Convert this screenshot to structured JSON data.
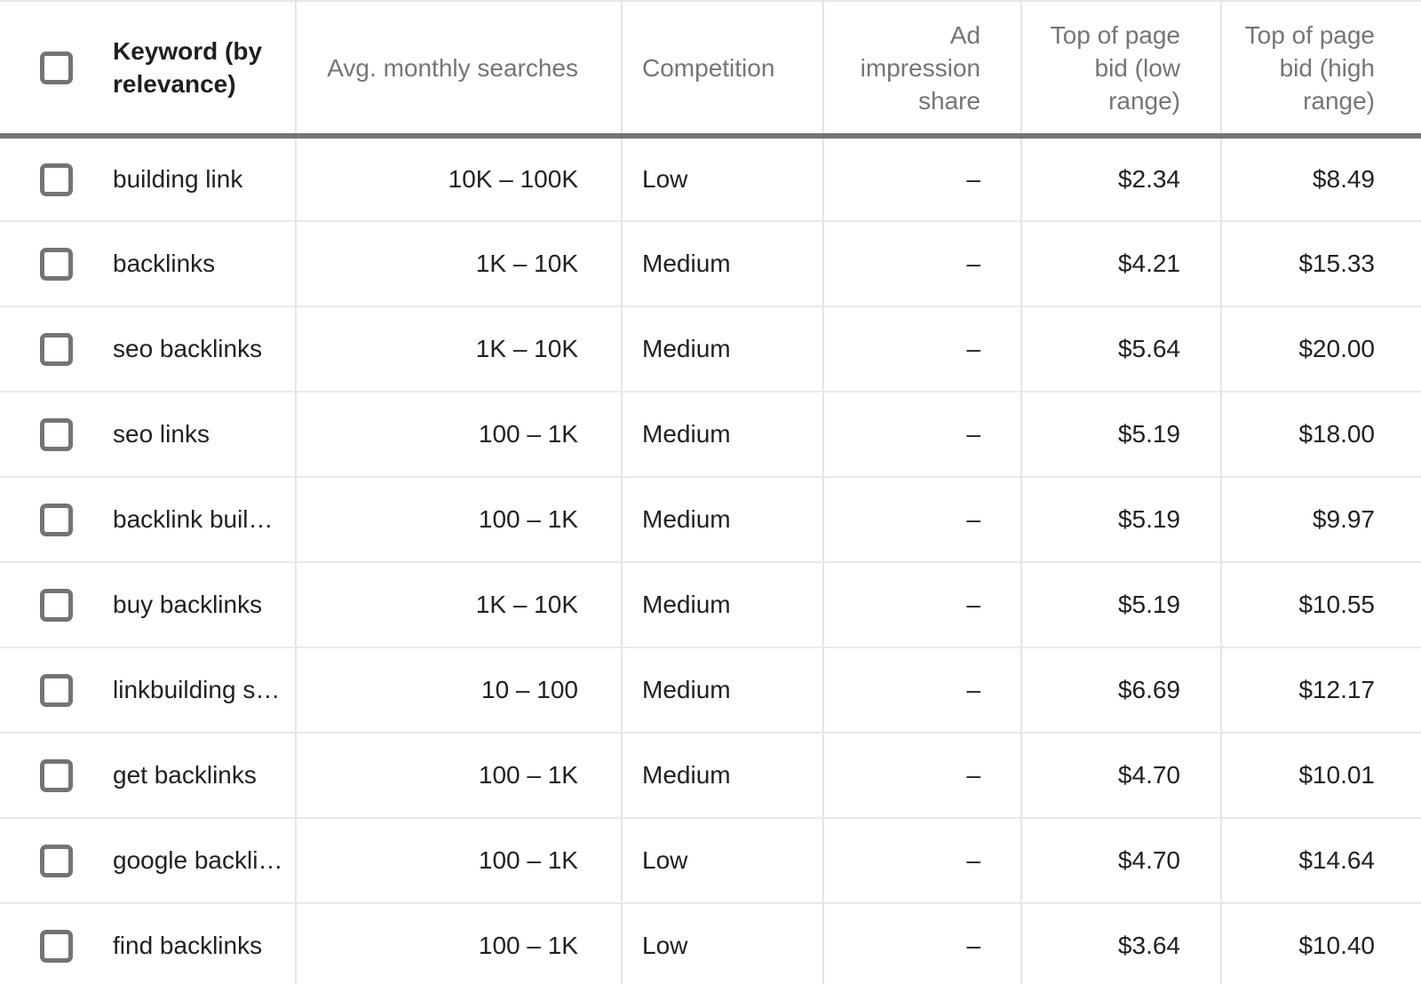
{
  "app": "keyword-ideas-table",
  "colors": {
    "header_rule": "#757575",
    "header_text": "#757575",
    "keyword_header_text": "#1f1f1f",
    "body_text": "#202124",
    "divider": "#e4e4e4",
    "checkbox_border": "#747474"
  },
  "table": {
    "columns": [
      {
        "id": "keyword",
        "label": "Keyword (by\nrelevance)"
      },
      {
        "id": "searches",
        "label": "Avg. monthly searches"
      },
      {
        "id": "competition",
        "label": "Competition"
      },
      {
        "id": "ad_impression_share",
        "label": "Ad impression\nshare"
      },
      {
        "id": "bid_low",
        "label": "Top of page\nbid (low\nrange)"
      },
      {
        "id": "bid_high",
        "label": "Top of page\nbid (high\nrange)"
      }
    ],
    "rows": [
      {
        "keyword": "building link",
        "searches": "10K – 100K",
        "competition": "Low",
        "ad_impression_share": "–",
        "bid_low": "$2.34",
        "bid_high": "$8.49"
      },
      {
        "keyword": "backlinks",
        "searches": "1K – 10K",
        "competition": "Medium",
        "ad_impression_share": "–",
        "bid_low": "$4.21",
        "bid_high": "$15.33"
      },
      {
        "keyword": "seo backlinks",
        "searches": "1K – 10K",
        "competition": "Medium",
        "ad_impression_share": "–",
        "bid_low": "$5.64",
        "bid_high": "$20.00"
      },
      {
        "keyword": "seo links",
        "searches": "100 – 1K",
        "competition": "Medium",
        "ad_impression_share": "–",
        "bid_low": "$5.19",
        "bid_high": "$18.00"
      },
      {
        "keyword": "backlink buil…",
        "searches": "100 – 1K",
        "competition": "Medium",
        "ad_impression_share": "–",
        "bid_low": "$5.19",
        "bid_high": "$9.97"
      },
      {
        "keyword": "buy backlinks",
        "searches": "1K – 10K",
        "competition": "Medium",
        "ad_impression_share": "–",
        "bid_low": "$5.19",
        "bid_high": "$10.55"
      },
      {
        "keyword": "linkbuilding s…",
        "searches": "10 – 100",
        "competition": "Medium",
        "ad_impression_share": "–",
        "bid_low": "$6.69",
        "bid_high": "$12.17"
      },
      {
        "keyword": "get backlinks",
        "searches": "100 – 1K",
        "competition": "Medium",
        "ad_impression_share": "–",
        "bid_low": "$4.70",
        "bid_high": "$10.01"
      },
      {
        "keyword": "google backli…",
        "searches": "100 – 1K",
        "competition": "Low",
        "ad_impression_share": "–",
        "bid_low": "$4.70",
        "bid_high": "$14.64"
      },
      {
        "keyword": "find backlinks",
        "searches": "100 – 1K",
        "competition": "Low",
        "ad_impression_share": "–",
        "bid_low": "$3.64",
        "bid_high": "$10.40"
      }
    ]
  }
}
